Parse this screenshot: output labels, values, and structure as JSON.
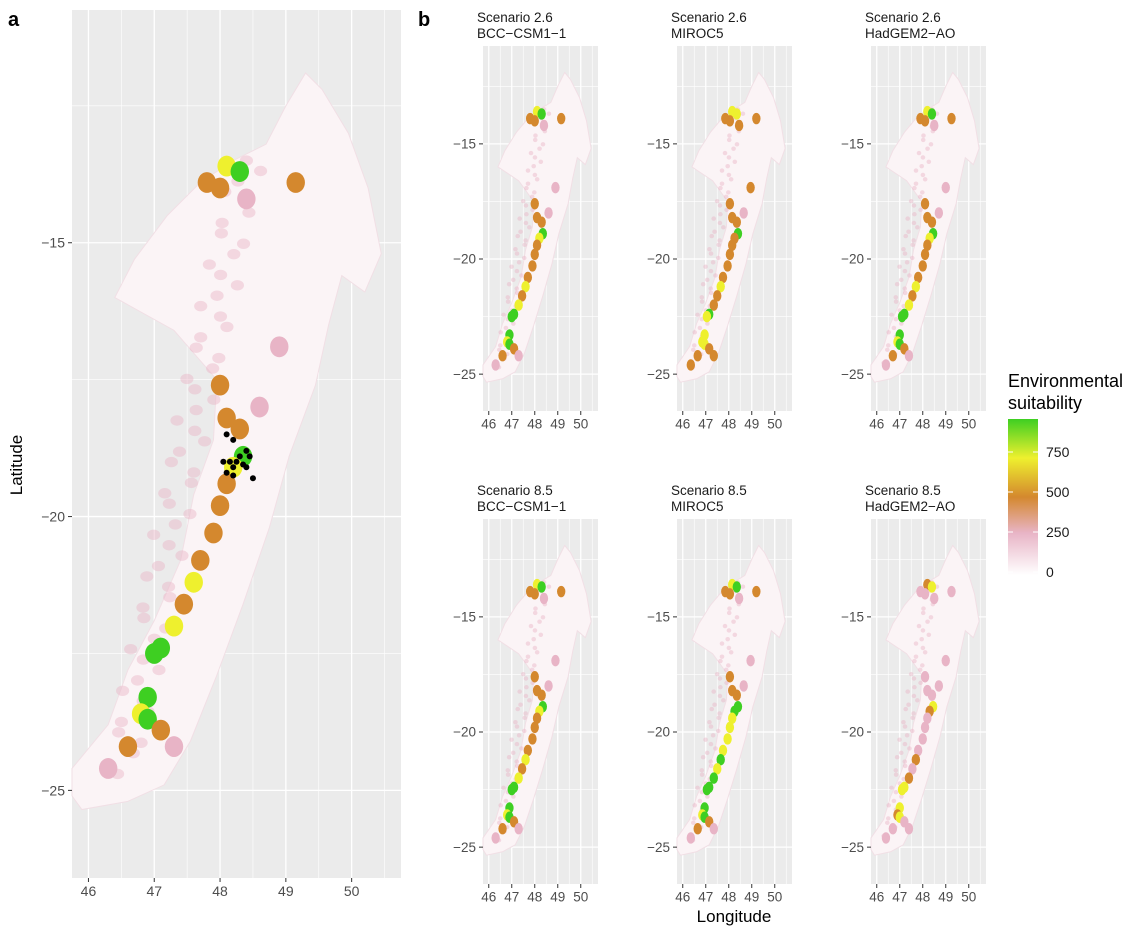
{
  "panel_a": {
    "letter": "a",
    "ylabel": "Latitude",
    "x_ticks": [
      "46",
      "47",
      "48",
      "49",
      "50"
    ],
    "y_ticks": [
      "-15",
      "-20",
      "-25"
    ]
  },
  "panel_b": {
    "letter": "b",
    "xlabel": "Longitude",
    "x_ticks": [
      "46",
      "47",
      "48",
      "49",
      "50"
    ],
    "y_ticks": [
      "-15",
      "-20",
      "-25"
    ],
    "facets": [
      {
        "scenario": "Scenario 2.6",
        "model": "BCC−CSM1−1"
      },
      {
        "scenario": "Scenario 2.6",
        "model": "MIROC5"
      },
      {
        "scenario": "Scenario 2.6",
        "model": "HadGEM2−AO"
      },
      {
        "scenario": "Scenario 8.5",
        "model": "BCC−CSM1−1"
      },
      {
        "scenario": "Scenario 8.5",
        "model": "MIROC5"
      },
      {
        "scenario": "Scenario 8.5",
        "model": "HadGEM2−AO"
      }
    ]
  },
  "legend": {
    "title_line1": "Environmental",
    "title_line2": "suitability",
    "breaks": [
      "750",
      "500",
      "250",
      "0"
    ],
    "colors": [
      "#ffffff",
      "#e8b4c6",
      "#d4882e",
      "#eef02e",
      "#3ecf22"
    ]
  },
  "colors": {
    "panel_bg": "#ebebeb",
    "grid": "#ffffff",
    "land": "#fbf4f6",
    "low": "#e8b4c6",
    "mid": "#d4882e",
    "high": "#eef02e",
    "top": "#3ecf22",
    "occurrence": "#000000"
  }
}
